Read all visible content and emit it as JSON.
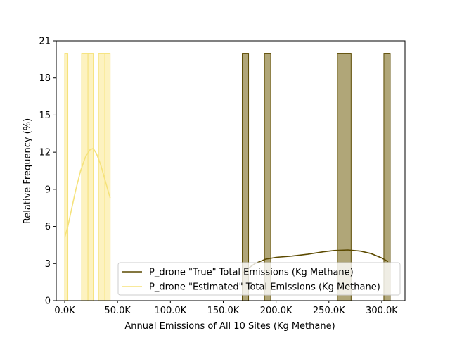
{
  "chart_data": {
    "type": "bar",
    "title": "",
    "xlabel": "Annual Emissions of All 10 Sites (Kg Methane)",
    "ylabel": "Relative Frequency (%)",
    "xlim": [
      -8000,
      322000
    ],
    "ylim": [
      0,
      21
    ],
    "x_ticks": [
      0,
      50000,
      100000,
      150000,
      200000,
      250000,
      300000
    ],
    "x_tick_labels": [
      "0.0K",
      "50.0K",
      "100.0K",
      "150.0K",
      "200.0K",
      "250.0K",
      "300.0K"
    ],
    "y_ticks": [
      0,
      3,
      6,
      9,
      12,
      15,
      18,
      21
    ],
    "y_tick_labels": [
      "0",
      "3",
      "6",
      "9",
      "12",
      "15",
      "18",
      "21"
    ],
    "legend_position": "lower-right",
    "series": [
      {
        "name": "P_drone \"True\" Total Emissions (Kg Methane)",
        "color": "#5c4a00",
        "fill": "#b0a678",
        "bins": [
          {
            "x0": 168000,
            "x1": 174000,
            "value": 20
          },
          {
            "x0": 189000,
            "x1": 195000,
            "value": 20
          },
          {
            "x0": 258000,
            "x1": 271000,
            "value": 20
          },
          {
            "x0": 302000,
            "x1": 308000,
            "value": 20
          }
        ],
        "kde": [
          [
            168000,
            2.2
          ],
          [
            175000,
            2.7
          ],
          [
            180000,
            3.0
          ],
          [
            190000,
            3.35
          ],
          [
            200000,
            3.5
          ],
          [
            215000,
            3.6
          ],
          [
            230000,
            3.75
          ],
          [
            245000,
            3.95
          ],
          [
            255000,
            4.05
          ],
          [
            268000,
            4.1
          ],
          [
            280000,
            4.0
          ],
          [
            290000,
            3.8
          ],
          [
            300000,
            3.45
          ],
          [
            306000,
            3.15
          ]
        ]
      },
      {
        "name": "P_drone \"Estimated\" Total Emissions (Kg Methane)",
        "color": "#f5e27a",
        "fill": "#fdf2c0",
        "bins": [
          {
            "x0": 0,
            "x1": 3000,
            "value": 20
          },
          {
            "x0": 16000,
            "x1": 22000,
            "value": 20
          },
          {
            "x0": 22000,
            "x1": 27000,
            "value": 20
          },
          {
            "x0": 32000,
            "x1": 38000,
            "value": 20
          },
          {
            "x0": 38000,
            "x1": 43000,
            "value": 20
          }
        ],
        "kde": [
          [
            0,
            5.1
          ],
          [
            3000,
            6.0
          ],
          [
            6000,
            7.2
          ],
          [
            10000,
            8.8
          ],
          [
            15000,
            10.5
          ],
          [
            20000,
            11.7
          ],
          [
            24000,
            12.2
          ],
          [
            27000,
            12.3
          ],
          [
            30000,
            11.9
          ],
          [
            34000,
            11.0
          ],
          [
            38000,
            9.8
          ],
          [
            41000,
            8.9
          ],
          [
            43000,
            8.3
          ]
        ]
      }
    ]
  }
}
